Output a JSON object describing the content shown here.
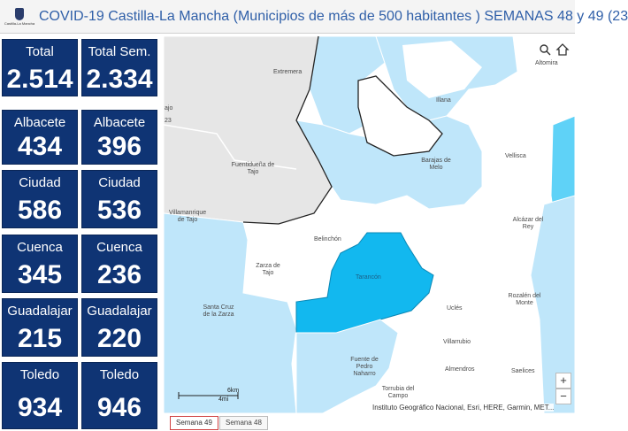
{
  "header": {
    "logo_text": "Castilla-La Mancha",
    "title": "COVID-19 Castilla-La Mancha (Municipios de más de 500 habitantes ) SEMANAS 48 y 49 (23"
  },
  "cards": [
    {
      "label": "Total",
      "value": "2.514"
    },
    {
      "label": "Total Sem.",
      "value": "2.334"
    },
    {
      "label": "Albacete",
      "value": "434"
    },
    {
      "label": "Albacete",
      "value": "396"
    },
    {
      "label": "Ciudad",
      "value": "586"
    },
    {
      "label": "Ciudad",
      "value": "536"
    },
    {
      "label": "Cuenca",
      "value": "345"
    },
    {
      "label": "Cuenca",
      "value": "236"
    },
    {
      "label": "Guadalajar",
      "value": "215"
    },
    {
      "label": "Guadalajar",
      "value": "220"
    },
    {
      "label": "Toledo",
      "value": "934"
    },
    {
      "label": "Toledo",
      "value": "946"
    }
  ],
  "map": {
    "places": {
      "altomira": "Altomira",
      "extremera": "Extremera",
      "illana": "Illana",
      "fuentiduena": "Fuentidueña de Tajo",
      "barajas": "Barajas de Melo",
      "vellisca": "Vellisca",
      "villamanrique": "Villamanrique de Tajo",
      "alcazar": "Alcázar del Rey",
      "belinchon": "Belinchón",
      "zarza": "Zarza de Tajo",
      "tarancon": "Tarancón",
      "rozalen": "Rozalén del Monte",
      "santa_cruz": "Santa Cruz de la Zarza",
      "ucles": "Uclés",
      "villarrubio": "Villarrubio",
      "fuente_pedro": "Fuente de Pedro Naharro",
      "almendros": "Almendros",
      "saelices": "Saelices",
      "torrubia": "Torrubia del Campo",
      "edge_left": "ajo",
      "edge_left2": "23"
    },
    "scale_km": "6km",
    "scale_mi": "4mi",
    "attribution": "Instituto Geográfico Nacional, Esri, HERE, Garmin, MET...",
    "zoom_in": "+",
    "zoom_out": "−",
    "icons": [
      "search-icon",
      "home-icon"
    ]
  },
  "tabs": [
    "Semana 49",
    "Semana 48"
  ],
  "colors": {
    "card_bg": "#0f3474",
    "title": "#2f5fa8",
    "light_blue": "#bfe6fa",
    "bright_blue": "#12b8ef",
    "gray": "#e6e6e6",
    "tab_active_border": "#d04040"
  }
}
